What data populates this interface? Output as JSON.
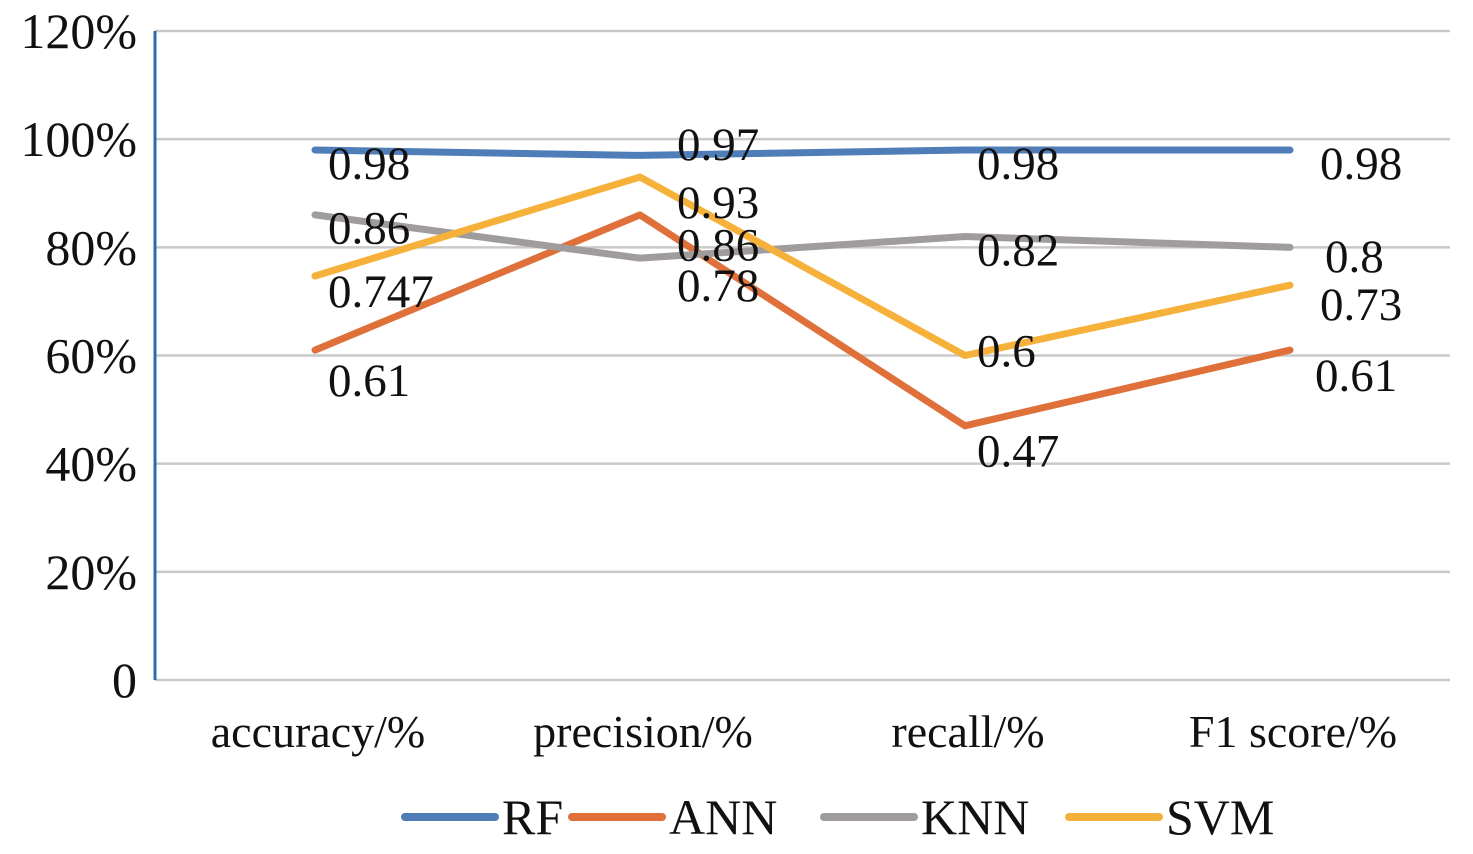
{
  "chart_data": {
    "type": "line",
    "categories": [
      "accuracy/%",
      "precision/%",
      "recall/%",
      "F1 score/%"
    ],
    "yticks": [
      {
        "value": 0,
        "label": "0"
      },
      {
        "value": 0.2,
        "label": "20%"
      },
      {
        "value": 0.4,
        "label": "40%"
      },
      {
        "value": 0.6,
        "label": "60%"
      },
      {
        "value": 0.8,
        "label": "80%"
      },
      {
        "value": 1.0,
        "label": "100%"
      },
      {
        "value": 1.2,
        "label": "120%"
      }
    ],
    "ylim": [
      0,
      1.2
    ],
    "grid": true,
    "legend_position": "bottom",
    "series": [
      {
        "name": "RF",
        "color": "#4f7db8",
        "values": [
          0.98,
          0.97,
          0.98,
          0.98
        ],
        "labels": [
          "0.98",
          "0.97",
          "0.98",
          "0.98"
        ]
      },
      {
        "name": "ANN",
        "color": "#e0703a",
        "values": [
          0.61,
          0.86,
          0.47,
          0.61
        ],
        "labels": [
          "0.61",
          "0.86",
          "0.47",
          "0.61"
        ]
      },
      {
        "name": "KNN",
        "color": "#a09c9b",
        "values": [
          0.86,
          0.78,
          0.82,
          0.8
        ],
        "labels": [
          "0.86",
          "0.78",
          "0.82",
          "0.8"
        ]
      },
      {
        "name": "SVM",
        "color": "#f5b13a",
        "values": [
          0.747,
          0.93,
          0.6,
          0.73
        ],
        "labels": [
          "0.747",
          "0.93",
          "0.6",
          "0.73"
        ]
      }
    ]
  }
}
